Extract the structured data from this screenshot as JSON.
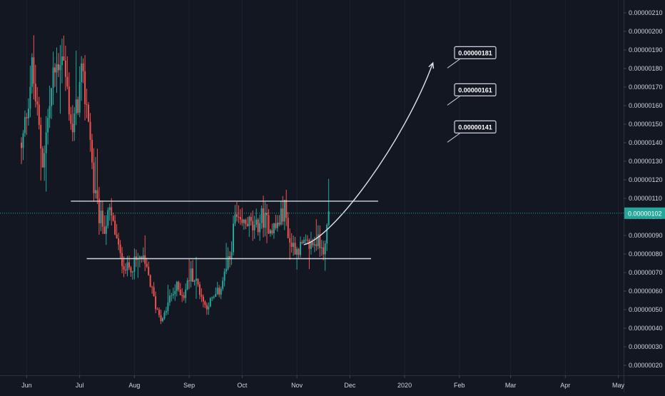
{
  "chart_data": {
    "type": "candlestick",
    "x_tick_labels": [
      "Jun",
      "Jul",
      "Aug",
      "Sep",
      "Oct",
      "Nov",
      "Dec",
      "2020",
      "Feb",
      "Mar",
      "Apr",
      "May"
    ],
    "y_tick_labels": [
      "0.00000020",
      "0.00000030",
      "0.00000040",
      "0.00000050",
      "0.00000060",
      "0.00000070",
      "0.00000080",
      "0.00000090",
      "0.00000100",
      "0.00000110",
      "0.00000120",
      "0.00000130",
      "0.00000140",
      "0.00000150",
      "0.00000160",
      "0.00000170",
      "0.00000180",
      "0.00000190",
      "0.00000200",
      "0.00000210"
    ],
    "ylim": [
      1.8e-07,
      2.14e-06
    ],
    "current_price": {
      "value": 1.02e-06,
      "label": "0.00000102"
    },
    "horizontal_levels": [
      {
        "value": 1.085e-06,
        "from": "Jun 29",
        "to": "Dec 20"
      },
      {
        "value": 7.75e-07,
        "from": "Jul 8",
        "to": "Dec 16"
      }
    ],
    "projection": {
      "from_value": 8.5e-07,
      "to_value": 1.83e-06
    },
    "targets": [
      {
        "label": "0.00000181",
        "value": 1.81e-06
      },
      {
        "label": "0.00000161",
        "value": 1.61e-06
      },
      {
        "label": "0.00000141",
        "value": 1.41e-06
      }
    ],
    "colors": {
      "up": "#26a69a",
      "down": "#ef5350",
      "background": "#131722",
      "axis_text": "#d1d4dc",
      "price_tag": "#26a69a",
      "grid": "#1e2230"
    },
    "keypoints": [
      [
        0,
        1.35,
        1.55
      ],
      [
        6,
        1.8,
        1.4
      ],
      [
        12,
        1.3,
        1.65
      ],
      [
        18,
        1.75,
        1.95
      ],
      [
        23,
        1.9,
        1.7
      ],
      [
        29,
        1.45,
        1.85
      ],
      [
        34,
        1.75,
        1.6
      ],
      [
        38,
        1.55,
        1.15
      ],
      [
        41,
        1.15,
        1.0
      ],
      [
        44,
        1.0,
        0.95
      ],
      [
        47,
        0.95,
        1.02
      ],
      [
        50,
        1.02,
        0.92
      ],
      [
        53,
        0.92,
        0.78
      ],
      [
        56,
        0.78,
        0.72
      ],
      [
        60,
        0.72,
        0.75
      ],
      [
        64,
        0.75,
        0.78
      ],
      [
        68,
        0.78,
        0.68
      ],
      [
        72,
        0.68,
        0.52
      ],
      [
        76,
        0.52,
        0.44
      ],
      [
        80,
        0.44,
        0.56
      ],
      [
        84,
        0.56,
        0.62
      ],
      [
        88,
        0.62,
        0.58
      ],
      [
        92,
        0.58,
        0.7
      ],
      [
        96,
        0.7,
        0.63
      ],
      [
        100,
        0.63,
        0.52
      ],
      [
        104,
        0.52,
        0.55
      ],
      [
        108,
        0.55,
        0.6
      ],
      [
        112,
        0.6,
        0.72
      ],
      [
        116,
        0.72,
        0.78
      ],
      [
        118,
        0.78,
        1.0
      ],
      [
        121,
        1.0,
        0.94
      ],
      [
        124,
        0.94,
        0.98
      ],
      [
        128,
        0.98,
        0.92
      ],
      [
        132,
        0.92,
        1.0
      ],
      [
        136,
        1.0,
        0.96
      ],
      [
        140,
        0.96,
        0.94
      ],
      [
        144,
        0.94,
        1.0
      ],
      [
        147,
        1.0,
        1.05
      ],
      [
        149,
        1.05,
        0.86
      ],
      [
        152,
        0.86,
        0.83
      ],
      [
        156,
        0.83,
        0.84
      ],
      [
        160,
        0.84,
        0.85
      ],
      [
        164,
        0.85,
        0.87
      ],
      [
        167,
        0.87,
        0.86
      ],
      [
        170,
        0.86,
        0.82
      ],
      [
        172,
        0.82,
        1.04
      ],
      [
        174,
        1.04,
        1.02
      ]
    ]
  }
}
